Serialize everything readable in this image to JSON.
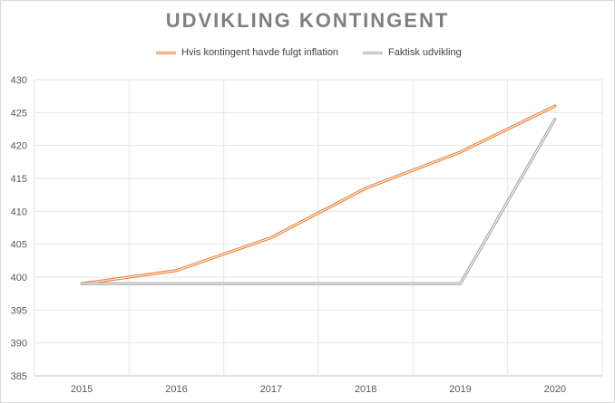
{
  "chart_data": {
    "type": "line",
    "title": "UDVIKLING KONTINGENT",
    "xlabel": "",
    "ylabel": "",
    "categories": [
      "2015",
      "2016",
      "2017",
      "2018",
      "2019",
      "2020"
    ],
    "ylim": [
      385,
      430
    ],
    "yticks": [
      "385",
      "390",
      "395",
      "400",
      "405",
      "410",
      "415",
      "420",
      "425",
      "430"
    ],
    "grid": true,
    "legend_position": "top",
    "series": [
      {
        "name": "Hvis kontingent havde fulgt inflation",
        "values": [
          399,
          401,
          406,
          413.5,
          419,
          426
        ],
        "color": "#ed7d31"
      },
      {
        "name": "Faktisk udvikling",
        "values": [
          399,
          399,
          399,
          399,
          399,
          424
        ],
        "color": "#a5a5a5"
      }
    ]
  }
}
